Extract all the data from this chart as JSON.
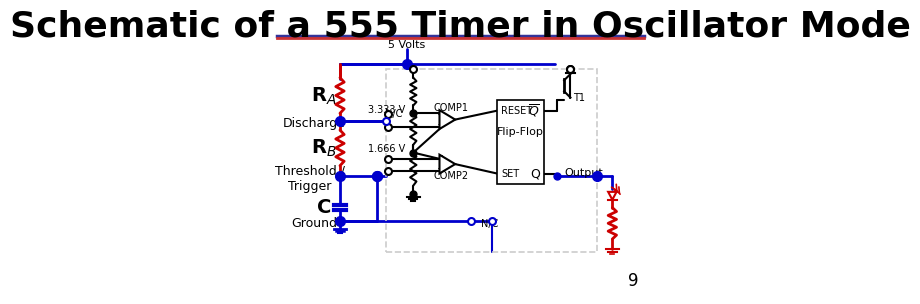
{
  "title": "Schematic of a 555 Timer in Oscillator Mode",
  "title_fontsize": 26,
  "title_font": "DejaVu Sans",
  "background_color": "#ffffff",
  "blue": "#0000cc",
  "red": "#cc0000",
  "dark": "#000000",
  "gray": "#888888",
  "light_gray": "#cccccc",
  "page_number": "9"
}
